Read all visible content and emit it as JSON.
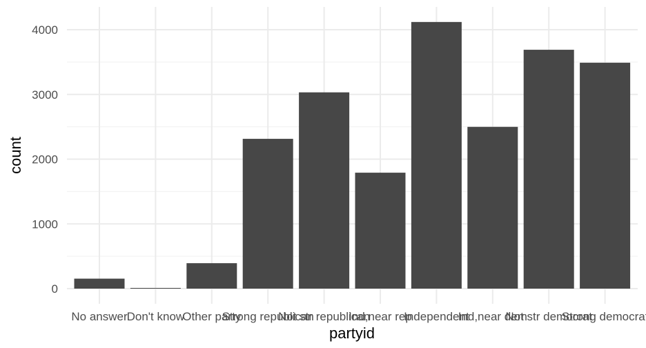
{
  "chart_data": {
    "type": "bar",
    "xlabel": "partyid",
    "ylabel": "count",
    "categories": [
      "No answer",
      "Don't know",
      "Other party",
      "Strong republican",
      "Not str republican",
      "Ind,near rep",
      "Independent",
      "Ind,near dem",
      "Not str democrat",
      "Strong democrat"
    ],
    "values": [
      154,
      1,
      393,
      2314,
      3032,
      1791,
      4119,
      2499,
      3690,
      3490
    ],
    "ylim": [
      0,
      4300
    ],
    "yticks": [
      0,
      1000,
      2000,
      3000,
      4000
    ],
    "ytick_labels": [
      "0",
      "1000",
      "2000",
      "3000",
      "4000"
    ],
    "grid": true,
    "legend": "none",
    "colors": {
      "bar": "#474747",
      "grid_major": "#ebebeb",
      "grid_minor": "#f3f3f3",
      "background": "#ffffff"
    }
  }
}
